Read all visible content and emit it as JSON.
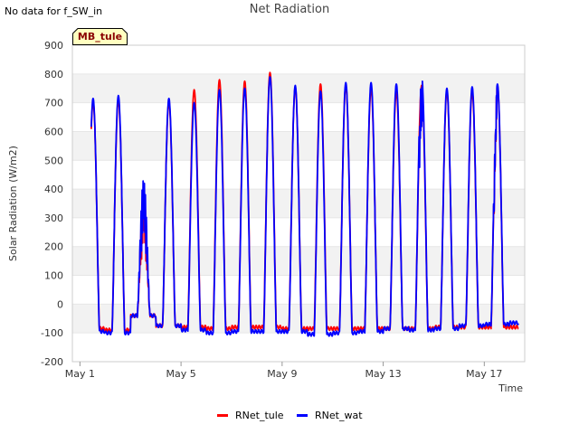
{
  "header": {
    "no_data_text": "No data for f_SW_in"
  },
  "site_label": "MB_tule",
  "chart_data": {
    "type": "line",
    "title": "Net Radiation",
    "xlabel": "Time",
    "ylabel": "Solar Radiation (W/m2)",
    "ylim": [
      -200,
      900
    ],
    "xlim": [
      0.7,
      18.6
    ],
    "yticks": [
      -200,
      -100,
      0,
      100,
      200,
      300,
      400,
      500,
      600,
      700,
      800,
      900
    ],
    "xticks": [
      {
        "value": 1,
        "label": "May 1"
      },
      {
        "value": 5,
        "label": "May 5"
      },
      {
        "value": 9,
        "label": "May 9"
      },
      {
        "value": 13,
        "label": "May 13"
      },
      {
        "value": 17,
        "label": "May 17"
      }
    ],
    "grid": true,
    "legend_position": "bottom",
    "series": [
      {
        "name": "RNet_tule",
        "color": "#ff0000",
        "start_day": 1,
        "night_values": [
          -85,
          -90,
          -40,
          -75,
          -80,
          -85,
          -80,
          -80,
          -85,
          -85,
          -85,
          -85,
          -85,
          -85,
          -80,
          -80,
          -80,
          -80
        ],
        "daily_peaks": [
          705,
          710,
          380,
          705,
          745,
          780,
          775,
          805,
          755,
          765,
          760,
          750,
          740,
          760,
          740,
          740,
          760
        ]
      },
      {
        "name": "RNet_wat",
        "color": "#0000ff",
        "start_day": 1,
        "night_values": [
          -95,
          -100,
          -40,
          -75,
          -90,
          -100,
          -95,
          -95,
          -95,
          -105,
          -100,
          -95,
          -85,
          -90,
          -85,
          -75,
          -70,
          -65
        ],
        "daily_peaks": [
          715,
          725,
          440,
          715,
          700,
          745,
          750,
          790,
          760,
          740,
          770,
          770,
          765,
          795,
          750,
          755,
          765
        ]
      }
    ]
  }
}
